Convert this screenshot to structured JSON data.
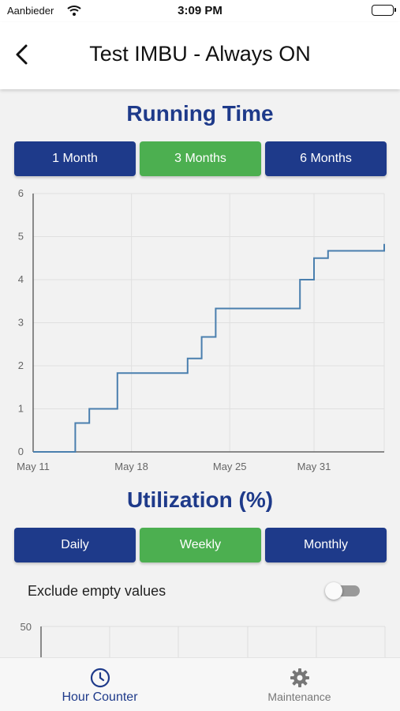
{
  "status": {
    "carrier": "Aanbieder",
    "time": "3:09 PM"
  },
  "header": {
    "title": "Test IMBU - Always ON"
  },
  "running_time": {
    "title": "Running Time",
    "ranges": [
      {
        "label": "1 Month",
        "active": false
      },
      {
        "label": "3 Months",
        "active": true
      },
      {
        "label": "6 Months",
        "active": false
      }
    ]
  },
  "chart_data": {
    "type": "line",
    "title": "Running Time",
    "xlabel": "",
    "ylabel": "",
    "x_ticks": [
      "May 11",
      "May 18",
      "May 25",
      "May 31"
    ],
    "y_ticks": [
      "0",
      "1",
      "2",
      "3",
      "4",
      "5",
      "6"
    ],
    "ylim": [
      0,
      6
    ],
    "xlim": [
      "2021-05-11",
      "2021-06-05"
    ],
    "grid": true,
    "step": true,
    "series": [
      {
        "color": "#4a7fae",
        "x": [
          "2021-05-11",
          "2021-05-14",
          "2021-05-14",
          "2021-05-15",
          "2021-05-16",
          "2021-05-17",
          "2021-05-17",
          "2021-05-22",
          "2021-05-22",
          "2021-05-23",
          "2021-05-24",
          "2021-05-24",
          "2021-05-30",
          "2021-05-30",
          "2021-05-31",
          "2021-05-31",
          "2021-06-01",
          "2021-06-05"
        ],
        "y": [
          0,
          0,
          0.67,
          1.0,
          1.0,
          1.33,
          1.83,
          1.83,
          2.17,
          2.67,
          3.0,
          3.33,
          3.33,
          4.0,
          4.33,
          4.5,
          4.67,
          4.83
        ]
      }
    ]
  },
  "utilization": {
    "title": "Utilization (%)",
    "ranges": [
      {
        "label": "Daily",
        "active": false
      },
      {
        "label": "Weekly",
        "active": true
      },
      {
        "label": "Monthly",
        "active": false
      }
    ],
    "exclude_empty_label": "Exclude empty values",
    "exclude_empty": false,
    "y_top_label": "50"
  },
  "tabs": [
    {
      "label": "Hour Counter",
      "icon": "clock-icon",
      "active": true
    },
    {
      "label": "Maintenance",
      "icon": "gear-icon",
      "active": false
    }
  ],
  "colors": {
    "primary": "#1e3a8a",
    "active": "#4caf50",
    "line": "#4a7fae"
  }
}
